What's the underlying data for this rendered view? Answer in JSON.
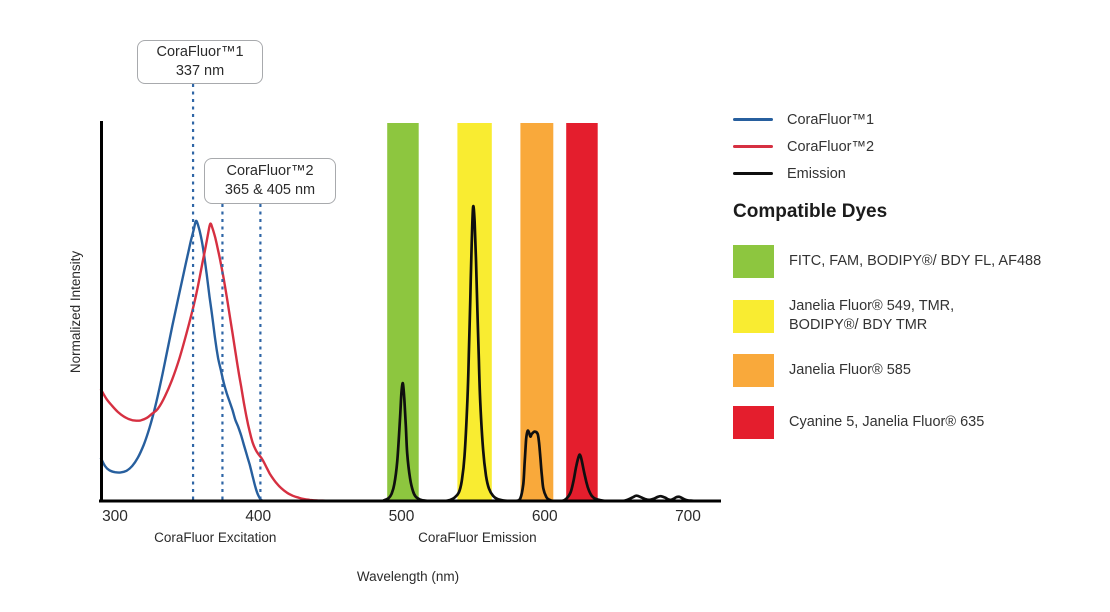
{
  "chart_data": {
    "type": "line",
    "title": "",
    "xlabel": "Wavelength (nm)",
    "ylabel": "Normalized Intensity",
    "x_ticks": [
      300,
      400,
      500,
      600,
      700
    ],
    "x_range": [
      290,
      722
    ],
    "y_range": [
      0,
      1.1
    ],
    "grid": false,
    "section_labels": [
      {
        "text": "CoraFluor Excitation",
        "center_nm": 370
      },
      {
        "text": "CoraFluor Emission",
        "center_nm": 553
      }
    ],
    "callouts": [
      {
        "title": "CoraFluor™1",
        "subtitle": "337 nm",
        "markers": [
          {
            "nm": 337,
            "visual_nm": 354.5
          }
        ]
      },
      {
        "title": "CoraFluor™2",
        "subtitle": "365 & 405 nm",
        "markers": [
          {
            "nm": 365,
            "visual_nm": 375
          },
          {
            "nm": 405,
            "visual_nm": 401.5
          }
        ]
      }
    ],
    "marker_color": "#2f66a6",
    "bands": [
      {
        "nm": [
          490,
          512
        ],
        "color": "#8dc63f",
        "dyes": "FITC, FAM, BODIPY®/ BDY FL, AF488"
      },
      {
        "nm": [
          539,
          563
        ],
        "color": "#f9ec31",
        "dyes": "Janelia Fluor® 549, TMR, BODIPY®/ BDY TMR"
      },
      {
        "nm": [
          583,
          606
        ],
        "color": "#f9a93b",
        "dyes": "Janelia Fluor® 585"
      },
      {
        "nm": [
          615,
          637
        ],
        "color": "#e41e2d",
        "dyes": "Cyanine 5, Janelia Fluor® 635"
      }
    ],
    "series": [
      {
        "name": "CoraFluor™1",
        "role": "excitation",
        "color": "#275f9e",
        "points": [
          [
            290,
            0.155
          ],
          [
            293,
            0.125
          ],
          [
            296,
            0.11
          ],
          [
            300,
            0.103
          ],
          [
            304,
            0.102
          ],
          [
            308,
            0.108
          ],
          [
            312,
            0.125
          ],
          [
            316,
            0.155
          ],
          [
            320,
            0.2
          ],
          [
            324,
            0.26
          ],
          [
            328,
            0.335
          ],
          [
            332,
            0.425
          ],
          [
            336,
            0.525
          ],
          [
            340,
            0.625
          ],
          [
            344,
            0.72
          ],
          [
            348,
            0.815
          ],
          [
            351,
            0.885
          ],
          [
            353,
            0.93
          ],
          [
            355,
            0.97
          ],
          [
            356.5,
            1.0
          ],
          [
            358,
            0.985
          ],
          [
            360,
            0.945
          ],
          [
            362,
            0.885
          ],
          [
            364,
            0.81
          ],
          [
            366,
            0.73
          ],
          [
            368,
            0.655
          ],
          [
            370,
            0.575
          ],
          [
            372,
            0.51
          ],
          [
            374,
            0.465
          ],
          [
            376,
            0.42
          ],
          [
            378,
            0.385
          ],
          [
            380,
            0.355
          ],
          [
            382,
            0.325
          ],
          [
            384,
            0.29
          ],
          [
            386,
            0.265
          ],
          [
            388,
            0.235
          ],
          [
            390,
            0.2
          ],
          [
            392,
            0.165
          ],
          [
            394,
            0.13
          ],
          [
            396,
            0.09
          ],
          [
            398,
            0.05
          ],
          [
            400,
            0.02
          ],
          [
            402,
            0.004
          ],
          [
            404,
            0
          ]
        ]
      },
      {
        "name": "CoraFluor™2",
        "role": "excitation",
        "color": "#d63041",
        "points": [
          [
            290,
            0.4
          ],
          [
            294,
            0.365
          ],
          [
            298,
            0.34
          ],
          [
            302,
            0.318
          ],
          [
            306,
            0.302
          ],
          [
            310,
            0.292
          ],
          [
            314,
            0.287
          ],
          [
            318,
            0.288
          ],
          [
            322,
            0.296
          ],
          [
            326,
            0.312
          ],
          [
            330,
            0.33
          ],
          [
            335,
            0.375
          ],
          [
            340,
            0.435
          ],
          [
            345,
            0.51
          ],
          [
            350,
            0.6
          ],
          [
            355,
            0.7
          ],
          [
            358,
            0.77
          ],
          [
            361,
            0.85
          ],
          [
            363,
            0.9
          ],
          [
            365,
            0.955
          ],
          [
            366.5,
            0.99
          ],
          [
            368,
            0.975
          ],
          [
            370,
            0.94
          ],
          [
            372,
            0.895
          ],
          [
            374,
            0.845
          ],
          [
            376,
            0.79
          ],
          [
            378,
            0.73
          ],
          [
            380,
            0.665
          ],
          [
            382,
            0.6
          ],
          [
            384,
            0.535
          ],
          [
            386,
            0.47
          ],
          [
            388,
            0.41
          ],
          [
            390,
            0.35
          ],
          [
            392,
            0.295
          ],
          [
            394,
            0.248
          ],
          [
            396,
            0.21
          ],
          [
            398,
            0.185
          ],
          [
            400,
            0.168
          ],
          [
            402,
            0.155
          ],
          [
            404,
            0.138
          ],
          [
            406,
            0.118
          ],
          [
            408,
            0.098
          ],
          [
            410,
            0.082
          ],
          [
            413,
            0.062
          ],
          [
            416,
            0.046
          ],
          [
            420,
            0.03
          ],
          [
            424,
            0.019
          ],
          [
            428,
            0.012
          ],
          [
            432,
            0.007
          ],
          [
            436,
            0.004
          ],
          [
            441,
            0.002
          ],
          [
            447,
            0.001
          ],
          [
            453,
            0
          ]
        ]
      },
      {
        "name": "Emission",
        "role": "emission",
        "color": "#0f0f0f",
        "points": [
          [
            460,
            0
          ],
          [
            484,
            0
          ],
          [
            488,
            0.003
          ],
          [
            491,
            0.01
          ],
          [
            493,
            0.025
          ],
          [
            495,
            0.06
          ],
          [
            497,
            0.14
          ],
          [
            499,
            0.3
          ],
          [
            500,
            0.39
          ],
          [
            501,
            0.42
          ],
          [
            502,
            0.36
          ],
          [
            503,
            0.27
          ],
          [
            504,
            0.17
          ],
          [
            506,
            0.08
          ],
          [
            508,
            0.035
          ],
          [
            510,
            0.015
          ],
          [
            513,
            0.005
          ],
          [
            517,
            0.001
          ],
          [
            522,
            0
          ],
          [
            530,
            0
          ],
          [
            534,
            0.004
          ],
          [
            537,
            0.012
          ],
          [
            540,
            0.03
          ],
          [
            542,
            0.07
          ],
          [
            544,
            0.16
          ],
          [
            546,
            0.36
          ],
          [
            547,
            0.52
          ],
          [
            548,
            0.72
          ],
          [
            549,
            0.92
          ],
          [
            550,
            1.05
          ],
          [
            551,
            1.0
          ],
          [
            552,
            0.86
          ],
          [
            553,
            0.68
          ],
          [
            554,
            0.5
          ],
          [
            555,
            0.35
          ],
          [
            557,
            0.18
          ],
          [
            559,
            0.09
          ],
          [
            561,
            0.045
          ],
          [
            564,
            0.018
          ],
          [
            567,
            0.007
          ],
          [
            571,
            0.002
          ],
          [
            576,
            0
          ],
          [
            580,
            0
          ],
          [
            583,
            0.01
          ],
          [
            585,
            0.06
          ],
          [
            586,
            0.14
          ],
          [
            587,
            0.22
          ],
          [
            588,
            0.25
          ],
          [
            589,
            0.245
          ],
          [
            590,
            0.23
          ],
          [
            591,
            0.24
          ],
          [
            593,
            0.248
          ],
          [
            595,
            0.24
          ],
          [
            596,
            0.21
          ],
          [
            597,
            0.15
          ],
          [
            598,
            0.09
          ],
          [
            599,
            0.045
          ],
          [
            601,
            0.015
          ],
          [
            603,
            0.005
          ],
          [
            606,
            0
          ],
          [
            612,
            0
          ],
          [
            615,
            0.008
          ],
          [
            618,
            0.03
          ],
          [
            620,
            0.07
          ],
          [
            622,
            0.125
          ],
          [
            624,
            0.163
          ],
          [
            625,
            0.16
          ],
          [
            626,
            0.14
          ],
          [
            628,
            0.09
          ],
          [
            630,
            0.05
          ],
          [
            632,
            0.025
          ],
          [
            634,
            0.012
          ],
          [
            637,
            0.005
          ],
          [
            641,
            0.001
          ],
          [
            646,
            0
          ],
          [
            654,
            0
          ],
          [
            658,
            0.005
          ],
          [
            661,
            0.012
          ],
          [
            664,
            0.019
          ],
          [
            667,
            0.014
          ],
          [
            670,
            0.007
          ],
          [
            673,
            0.004
          ],
          [
            676,
            0.008
          ],
          [
            679,
            0.015
          ],
          [
            681,
            0.017
          ],
          [
            684,
            0.012
          ],
          [
            686,
            0.006
          ],
          [
            688,
            0.004
          ],
          [
            690,
            0.008
          ],
          [
            692,
            0.014
          ],
          [
            694,
            0.015
          ],
          [
            696,
            0.01
          ],
          [
            698,
            0.005
          ],
          [
            700,
            0.002
          ],
          [
            703,
            0.001
          ],
          [
            708,
            0
          ],
          [
            720,
            0
          ]
        ]
      }
    ],
    "emission_peaks_nm": [
      501,
      550,
      590,
      624
    ],
    "axis_color": "#000000"
  },
  "legend": {
    "series": [
      {
        "name": "CoraFluor™1",
        "color": "#275f9e"
      },
      {
        "name": "CoraFluor™2",
        "color": "#d63041"
      },
      {
        "name": "Emission",
        "color": "#0f0f0f"
      }
    ],
    "dyes_heading": "Compatible Dyes",
    "dyes": [
      {
        "color": "#8dc63f",
        "label": "FITC, FAM, BODIPY®/ BDY FL, AF488"
      },
      {
        "color": "#f9ec31",
        "label": "Janelia Fluor® 549, TMR,\nBODIPY®/ BDY TMR"
      },
      {
        "color": "#f9a93b",
        "label": "Janelia Fluor® 585"
      },
      {
        "color": "#e41e2d",
        "label": "Cyanine 5, Janelia Fluor® 635"
      }
    ]
  }
}
